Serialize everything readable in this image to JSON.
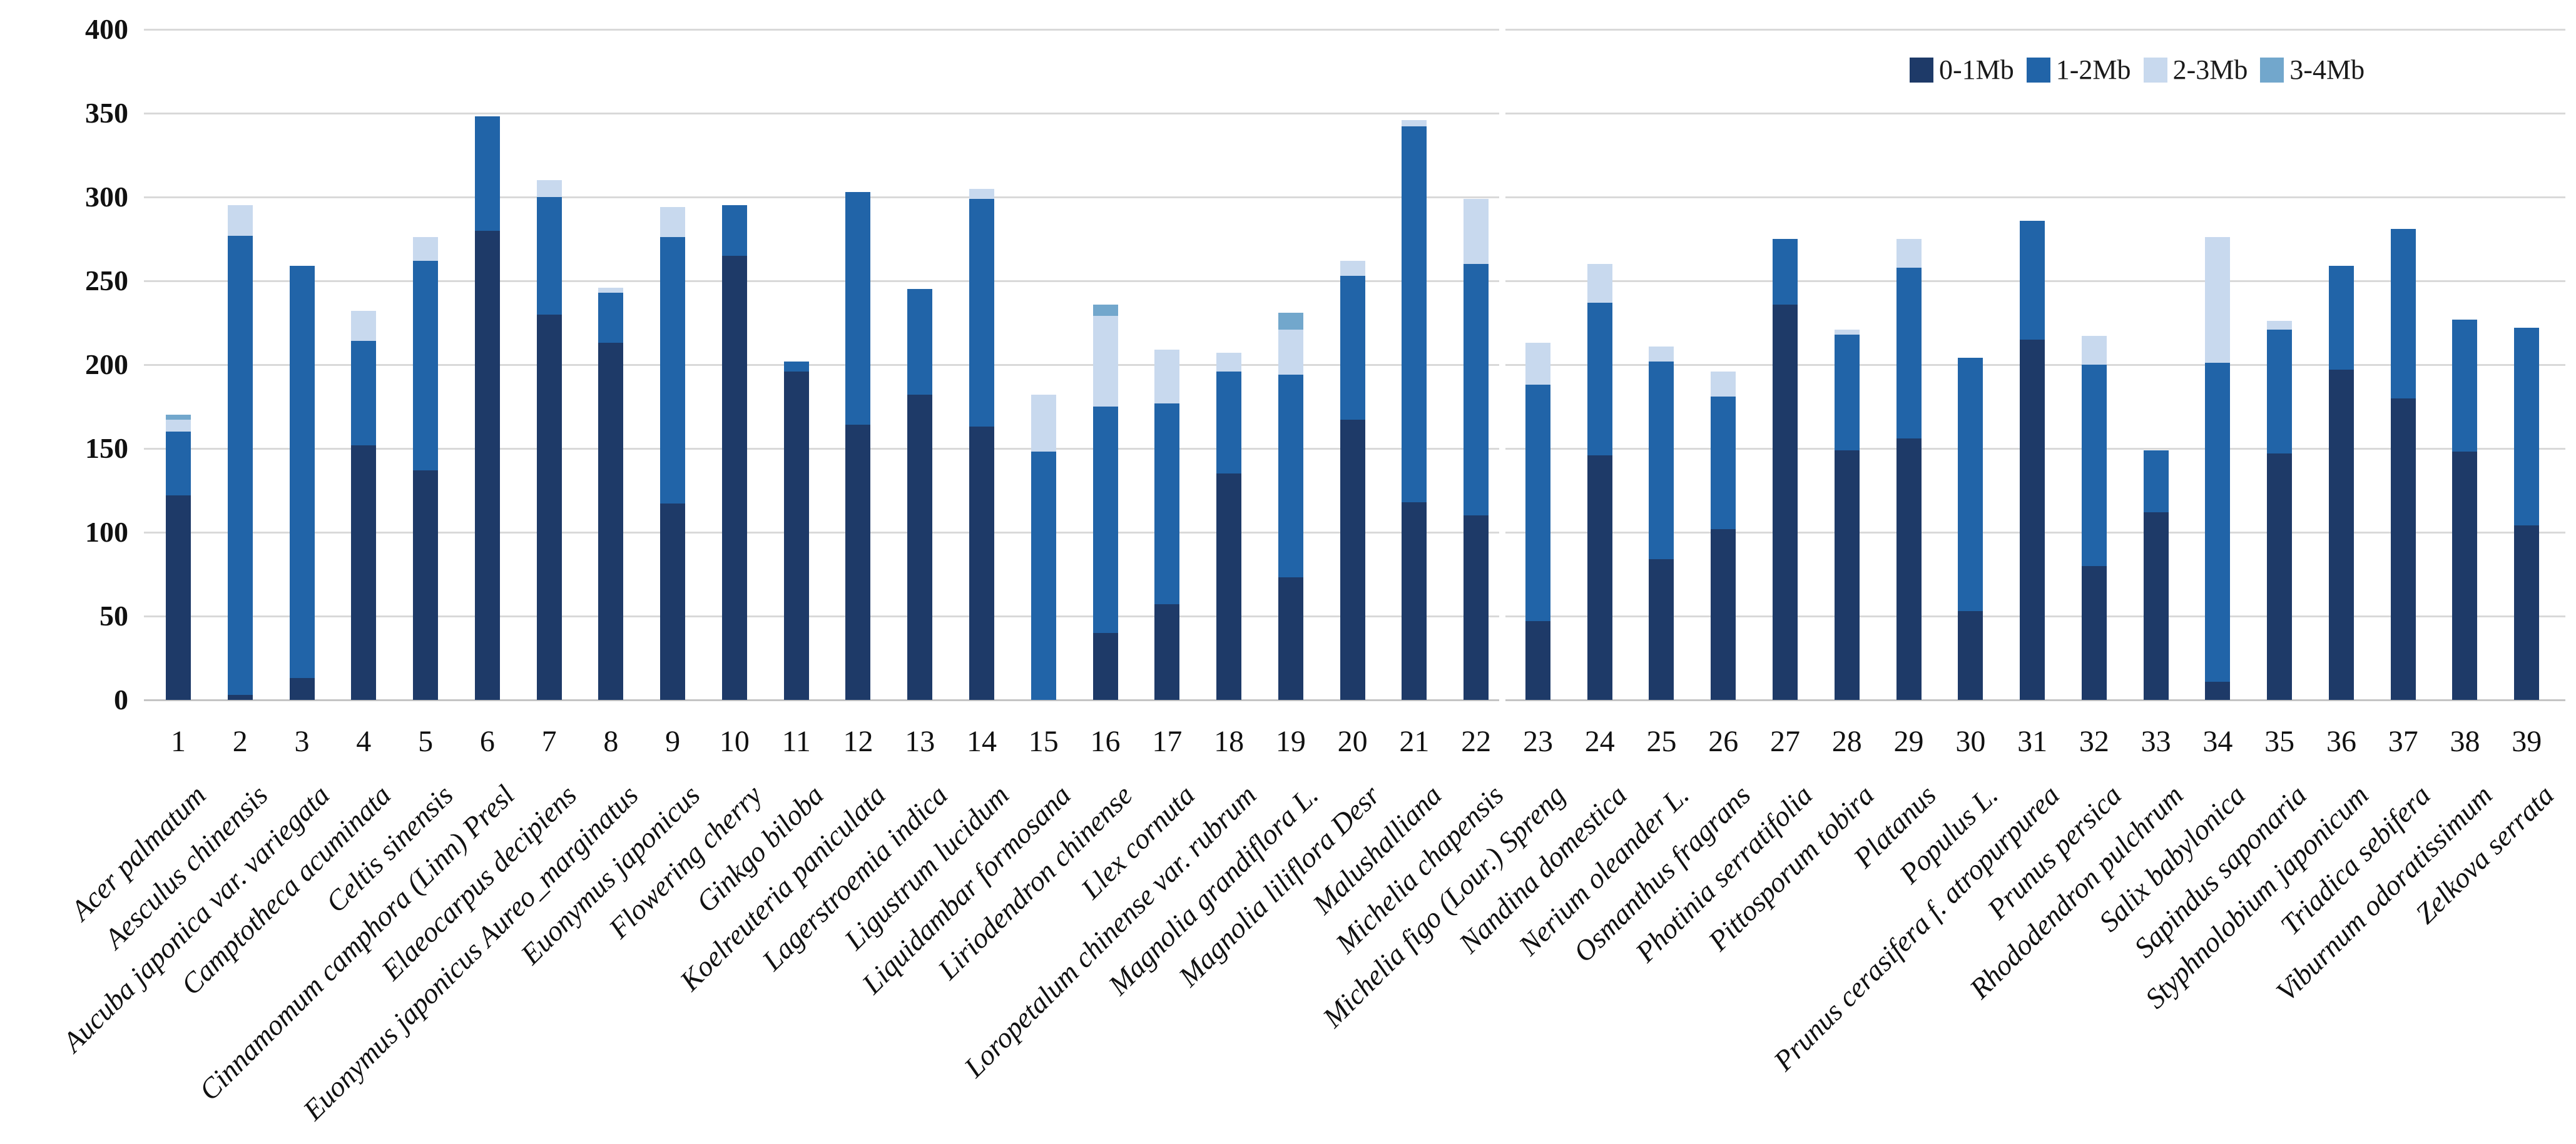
{
  "chart_data": {
    "type": "bar",
    "stacked": true,
    "title": "",
    "xlabel": "",
    "ylabel": "",
    "ylim": [
      0,
      400
    ],
    "ytick_labels": [
      "0",
      "50",
      "100",
      "150",
      "200",
      "250",
      "300",
      "350",
      "400"
    ],
    "grid": true,
    "panel_break_after_index": 22,
    "legend": {
      "position": "top-right",
      "entries": [
        {
          "label": "0-1Mb",
          "color": "#1e3a68"
        },
        {
          "label": "1-2Mb",
          "color": "#2164a8"
        },
        {
          "label": "2-3Mb",
          "color": "#c8d9ee"
        },
        {
          "label": "3-4Mb",
          "color": "#72a7cc"
        }
      ]
    },
    "categories": [
      {
        "num": "1",
        "name": "Acer palmatum"
      },
      {
        "num": "2",
        "name": "Aesculus chinensis"
      },
      {
        "num": "3",
        "name": "Aucuba japonica var. variegata"
      },
      {
        "num": "4",
        "name": "Camptotheca acuminata"
      },
      {
        "num": "5",
        "name": "Celtis sinensis"
      },
      {
        "num": "6",
        "name": "Cinnamomum camphora (Linn) Presl"
      },
      {
        "num": "7",
        "name": "Elaeocarpus decipiens"
      },
      {
        "num": "8",
        "name": "Euonymus japonicus Aureo_marginatus"
      },
      {
        "num": "9",
        "name": "Euonymus japonicus"
      },
      {
        "num": "10",
        "name": "Flowering cherry"
      },
      {
        "num": "11",
        "name": "Ginkgo biloba"
      },
      {
        "num": "12",
        "name": "Koelreuteria paniculata"
      },
      {
        "num": "13",
        "name": "Lagerstroemia indica"
      },
      {
        "num": "14",
        "name": "Ligustrum lucidum"
      },
      {
        "num": "15",
        "name": "Liquidambar formosana"
      },
      {
        "num": "16",
        "name": "Liriodendron chinense"
      },
      {
        "num": "17",
        "name": "Llex cornuta"
      },
      {
        "num": "18",
        "name": "Loropetalum chinense var. rubrum"
      },
      {
        "num": "19",
        "name": "Magnolia grandiflora L."
      },
      {
        "num": "20",
        "name": "Magnolia liliflora Desr"
      },
      {
        "num": "21",
        "name": "Malushalliana"
      },
      {
        "num": "22",
        "name": "Michelia chapensis"
      },
      {
        "num": "23",
        "name": "Michelia figo (Lour.) Spreng"
      },
      {
        "num": "24",
        "name": "Nandina domestica"
      },
      {
        "num": "25",
        "name": "Nerium oleander L."
      },
      {
        "num": "26",
        "name": "Osmanthus fragrans"
      },
      {
        "num": "27",
        "name": "Photinia serratifolia"
      },
      {
        "num": "28",
        "name": "Pittosporum tobira"
      },
      {
        "num": "29",
        "name": "Platanus"
      },
      {
        "num": "30",
        "name": "Populus L."
      },
      {
        "num": "31",
        "name": "Prunus cerasifera f. atropurpurea"
      },
      {
        "num": "32",
        "name": "Prunus persica"
      },
      {
        "num": "33",
        "name": "Rhododendron pulchrum"
      },
      {
        "num": "34",
        "name": "Salix babylonica"
      },
      {
        "num": "35",
        "name": "Sapindus saponaria"
      },
      {
        "num": "36",
        "name": "Styphnolobium japonicum"
      },
      {
        "num": "37",
        "name": "Triadica sebifera"
      },
      {
        "num": "38",
        "name": "Viburnum odoratissimum"
      },
      {
        "num": "39",
        "name": "Zelkova serrata"
      }
    ],
    "series": [
      {
        "name": "0-1Mb",
        "color": "#1e3a68",
        "values": [
          122,
          3,
          13,
          152,
          137,
          280,
          230,
          213,
          117,
          265,
          196,
          164,
          182,
          163,
          0,
          40,
          57,
          135,
          73,
          167,
          118,
          110,
          47,
          146,
          84,
          102,
          236,
          149,
          156,
          53,
          215,
          80,
          112,
          11,
          147,
          197,
          180,
          148,
          104
        ]
      },
      {
        "name": "1-2Mb",
        "color": "#2164a8",
        "values": [
          38,
          274,
          246,
          62,
          125,
          68,
          70,
          30,
          159,
          30,
          6,
          139,
          63,
          136,
          148,
          135,
          120,
          61,
          121,
          86,
          224,
          150,
          141,
          91,
          118,
          79,
          39,
          69,
          102,
          151,
          71,
          120,
          37,
          190,
          74,
          62,
          101,
          79,
          118
        ]
      },
      {
        "name": "2-3Mb",
        "color": "#c8d9ee",
        "values": [
          7,
          18,
          0,
          18,
          14,
          0,
          10,
          3,
          18,
          0,
          0,
          0,
          0,
          6,
          34,
          54,
          32,
          11,
          27,
          9,
          4,
          39,
          25,
          23,
          9,
          15,
          0,
          3,
          17,
          0,
          0,
          17,
          0,
          75,
          5,
          0,
          0,
          0,
          0
        ]
      },
      {
        "name": "3-4Mb",
        "color": "#72a7cc",
        "values": [
          3,
          0,
          0,
          0,
          0,
          0,
          0,
          0,
          0,
          0,
          0,
          0,
          0,
          0,
          0,
          7,
          0,
          0,
          10,
          0,
          0,
          0,
          0,
          0,
          0,
          0,
          0,
          0,
          0,
          0,
          0,
          0,
          0,
          0,
          0,
          0,
          0,
          0,
          0
        ]
      }
    ]
  }
}
